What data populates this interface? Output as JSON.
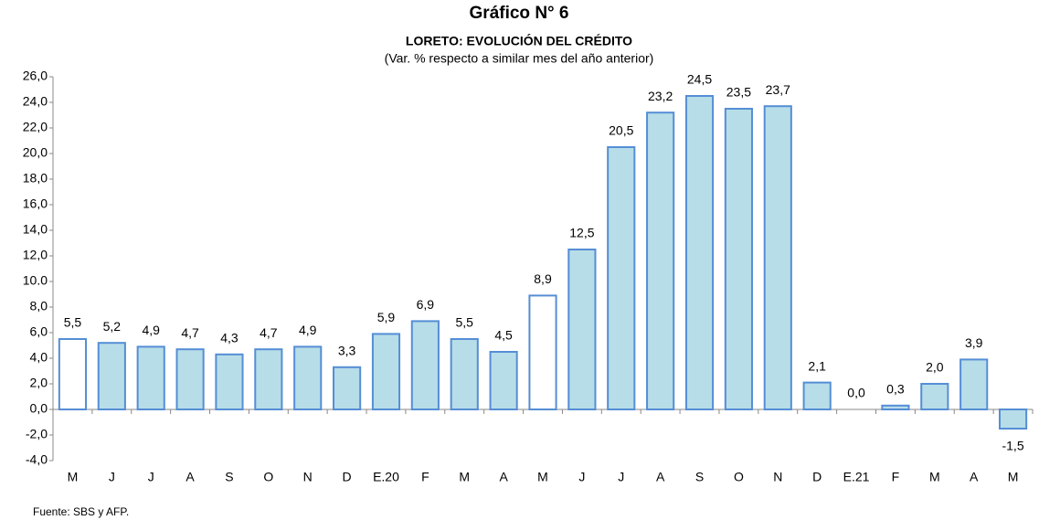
{
  "chart_data": {
    "type": "bar",
    "title": "Gráfico N° 6",
    "subtitle": "LORETO: EVOLUCIÓN DEL CRÉDITO",
    "note": "(Var. % respecto a similar mes del año anterior)",
    "source": "Fuente: SBS y AFP.",
    "categories": [
      "M",
      "J",
      "J",
      "A",
      "S",
      "O",
      "N",
      "D",
      "E.20",
      "F",
      "M",
      "A",
      "M",
      "J",
      "J",
      "A",
      "S",
      "O",
      "N",
      "D",
      "E.21",
      "F",
      "M",
      "A",
      "M"
    ],
    "values": [
      5.5,
      5.2,
      4.9,
      4.7,
      4.3,
      4.7,
      4.9,
      3.3,
      5.9,
      6.9,
      5.5,
      4.5,
      8.9,
      12.5,
      20.5,
      23.2,
      24.5,
      23.5,
      23.7,
      2.1,
      0.0,
      0.3,
      2.0,
      3.9,
      -1.5
    ],
    "value_labels": [
      "5,5",
      "5,2",
      "4,9",
      "4,7",
      "4,3",
      "4,7",
      "4,9",
      "3,3",
      "5,9",
      "6,9",
      "5,5",
      "4,5",
      "8,9",
      "12,5",
      "20,5",
      "23,2",
      "24,5",
      "23,5",
      "23,7",
      "2,1",
      "0,0",
      "0,3",
      "2,0",
      "3,9",
      "-1,5"
    ],
    "colors": [
      "#ffffff",
      "#b7dde8",
      "#b7dde8",
      "#b7dde8",
      "#b7dde8",
      "#b7dde8",
      "#b7dde8",
      "#b7dde8",
      "#b7dde8",
      "#b7dde8",
      "#b7dde8",
      "#b7dde8",
      "#ffffff",
      "#b7dde8",
      "#b7dde8",
      "#b7dde8",
      "#b7dde8",
      "#b7dde8",
      "#b7dde8",
      "#b7dde8",
      "#b7dde8",
      "#b7dde8",
      "#b7dde8",
      "#b7dde8",
      "#b7dde8"
    ],
    "edge_color": "#558ed5",
    "ylim": [
      -4,
      26
    ],
    "yticks": [
      {
        "value": -4,
        "label": "-4,0"
      },
      {
        "value": -2,
        "label": "-2,0"
      },
      {
        "value": 0,
        "label": "0,0"
      },
      {
        "value": 2,
        "label": "2,0"
      },
      {
        "value": 4,
        "label": "4,0"
      },
      {
        "value": 6,
        "label": "6,0"
      },
      {
        "value": 8,
        "label": "8,0"
      },
      {
        "value": 10,
        "label": "10.0"
      },
      {
        "value": 12,
        "label": "12,0"
      },
      {
        "value": 14,
        "label": "14,0"
      },
      {
        "value": 16,
        "label": "16,0"
      },
      {
        "value": 18,
        "label": "18,0"
      },
      {
        "value": 20,
        "label": "20,0"
      },
      {
        "value": 22,
        "label": "22,0"
      },
      {
        "value": 24,
        "label": "24,0"
      },
      {
        "value": 26,
        "label": "26,0"
      }
    ],
    "grid": false
  }
}
